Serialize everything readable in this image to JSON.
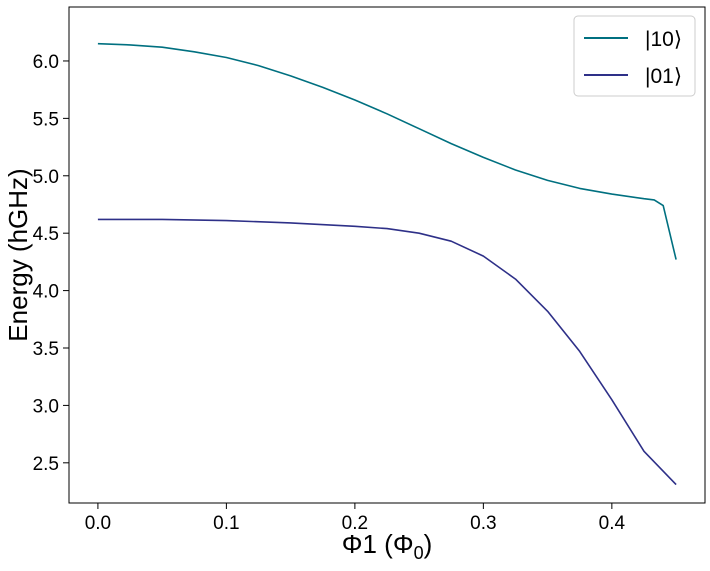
{
  "chart_data": {
    "type": "line",
    "title": "",
    "xlabel": "Φ1 (Φ",
    "xlabel_subscript": "0",
    "xlabel_close": ")",
    "ylabel": "Energy (hGHz)",
    "xlim": [
      -0.0225,
      0.4725
    ],
    "ylim": [
      2.15,
      6.47
    ],
    "xticks": [
      0.0,
      0.1,
      0.2,
      0.3,
      0.4
    ],
    "xtick_labels": [
      "0.0",
      "0.1",
      "0.2",
      "0.3",
      "0.4"
    ],
    "yticks": [
      2.5,
      3.0,
      3.5,
      4.0,
      4.5,
      5.0,
      5.5,
      6.0
    ],
    "ytick_labels": [
      "2.5",
      "3.0",
      "3.5",
      "4.0",
      "4.5",
      "5.0",
      "5.5",
      "6.0"
    ],
    "grid": false,
    "legend_position": "top-right",
    "series": [
      {
        "name": "|10⟩",
        "color": "#007080",
        "x": [
          0.0,
          0.025,
          0.05,
          0.075,
          0.1,
          0.125,
          0.15,
          0.175,
          0.2,
          0.225,
          0.25,
          0.275,
          0.3,
          0.325,
          0.35,
          0.375,
          0.4,
          0.425,
          0.433,
          0.44,
          0.45
        ],
        "y": [
          6.15,
          6.14,
          6.12,
          6.08,
          6.03,
          5.96,
          5.87,
          5.77,
          5.66,
          5.54,
          5.41,
          5.28,
          5.16,
          5.05,
          4.96,
          4.89,
          4.84,
          4.8,
          4.79,
          4.74,
          4.27
        ]
      },
      {
        "name": "|01⟩",
        "color": "#2e3088",
        "x": [
          0.0,
          0.05,
          0.1,
          0.15,
          0.2,
          0.225,
          0.25,
          0.275,
          0.3,
          0.325,
          0.35,
          0.375,
          0.4,
          0.425,
          0.45
        ],
        "y": [
          4.62,
          4.62,
          4.61,
          4.59,
          4.56,
          4.54,
          4.5,
          4.43,
          4.3,
          4.1,
          3.82,
          3.47,
          3.05,
          2.6,
          2.31
        ]
      }
    ]
  }
}
